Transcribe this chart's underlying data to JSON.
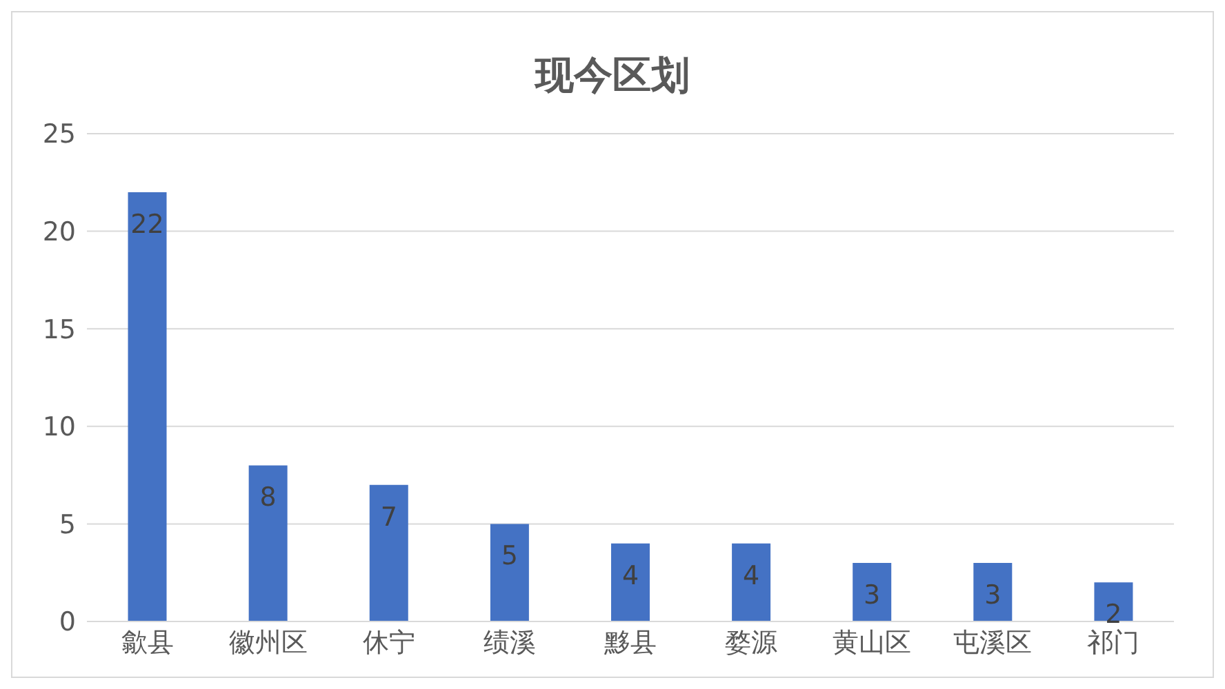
{
  "chart_data": {
    "type": "bar",
    "title": "现今区划",
    "categories": [
      "歙县",
      "徽州区",
      "休宁",
      "绩溪",
      "黟县",
      "婺源",
      "黄山区",
      "屯溪区",
      "祁门"
    ],
    "values": [
      22,
      8,
      7,
      5,
      4,
      4,
      3,
      3,
      2
    ],
    "color": "#4472c4",
    "ylim": [
      0,
      25
    ],
    "yticks": [
      0,
      5,
      10,
      15,
      20,
      25
    ],
    "grid": "y",
    "data_labels": true
  }
}
